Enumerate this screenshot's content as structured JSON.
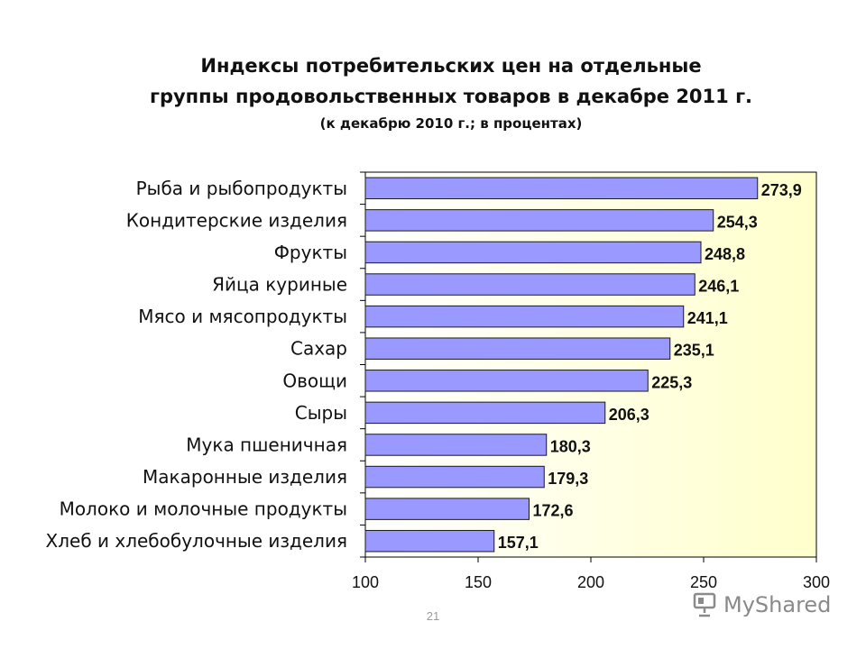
{
  "title": {
    "line1": "Индексы потребительских цен на отдельные",
    "line2": "группы продовольственных товаров в декабре 2011 г.",
    "subtitle": "(к декабрю 2010 г.; в процентах)"
  },
  "page_number": "21",
  "watermark": {
    "text": "MyShared",
    "icon": "presentation-board-icon"
  },
  "colors": {
    "bar_fill": "#9999ff",
    "bar_stroke": "#1a1a1a",
    "plot_gradient_start": "#ffffff",
    "plot_gradient_end": "#ffffcc"
  },
  "chart_data": {
    "type": "bar",
    "orientation": "horizontal",
    "categories": [
      "Рыба и рыбопродукты",
      "Кондитерские изделия",
      "Фрукты",
      "Яйца куриные",
      "Мясо и мясопродукты",
      "Сахар",
      "Овощи",
      "Сыры",
      "Мука пшеничная",
      "Макаронные изделия",
      "Молоко и молочные продукты",
      "Хлеб и хлебобулочные изделия"
    ],
    "values": [
      273.9,
      254.3,
      248.8,
      246.1,
      241.1,
      235.1,
      225.3,
      206.3,
      180.3,
      179.3,
      172.6,
      157.1
    ],
    "value_labels": [
      "273,9",
      "254,3",
      "248,8",
      "246,1",
      "241,1",
      "235,1",
      "225,3",
      "206,3",
      "180,3",
      "179,3",
      "172,6",
      "157,1"
    ],
    "xlim": [
      100,
      300
    ],
    "xticks": [
      100,
      150,
      200,
      250,
      300
    ],
    "xtick_labels": [
      "100",
      "150",
      "200",
      "250",
      "300"
    ],
    "grid": false,
    "legend": "none"
  }
}
